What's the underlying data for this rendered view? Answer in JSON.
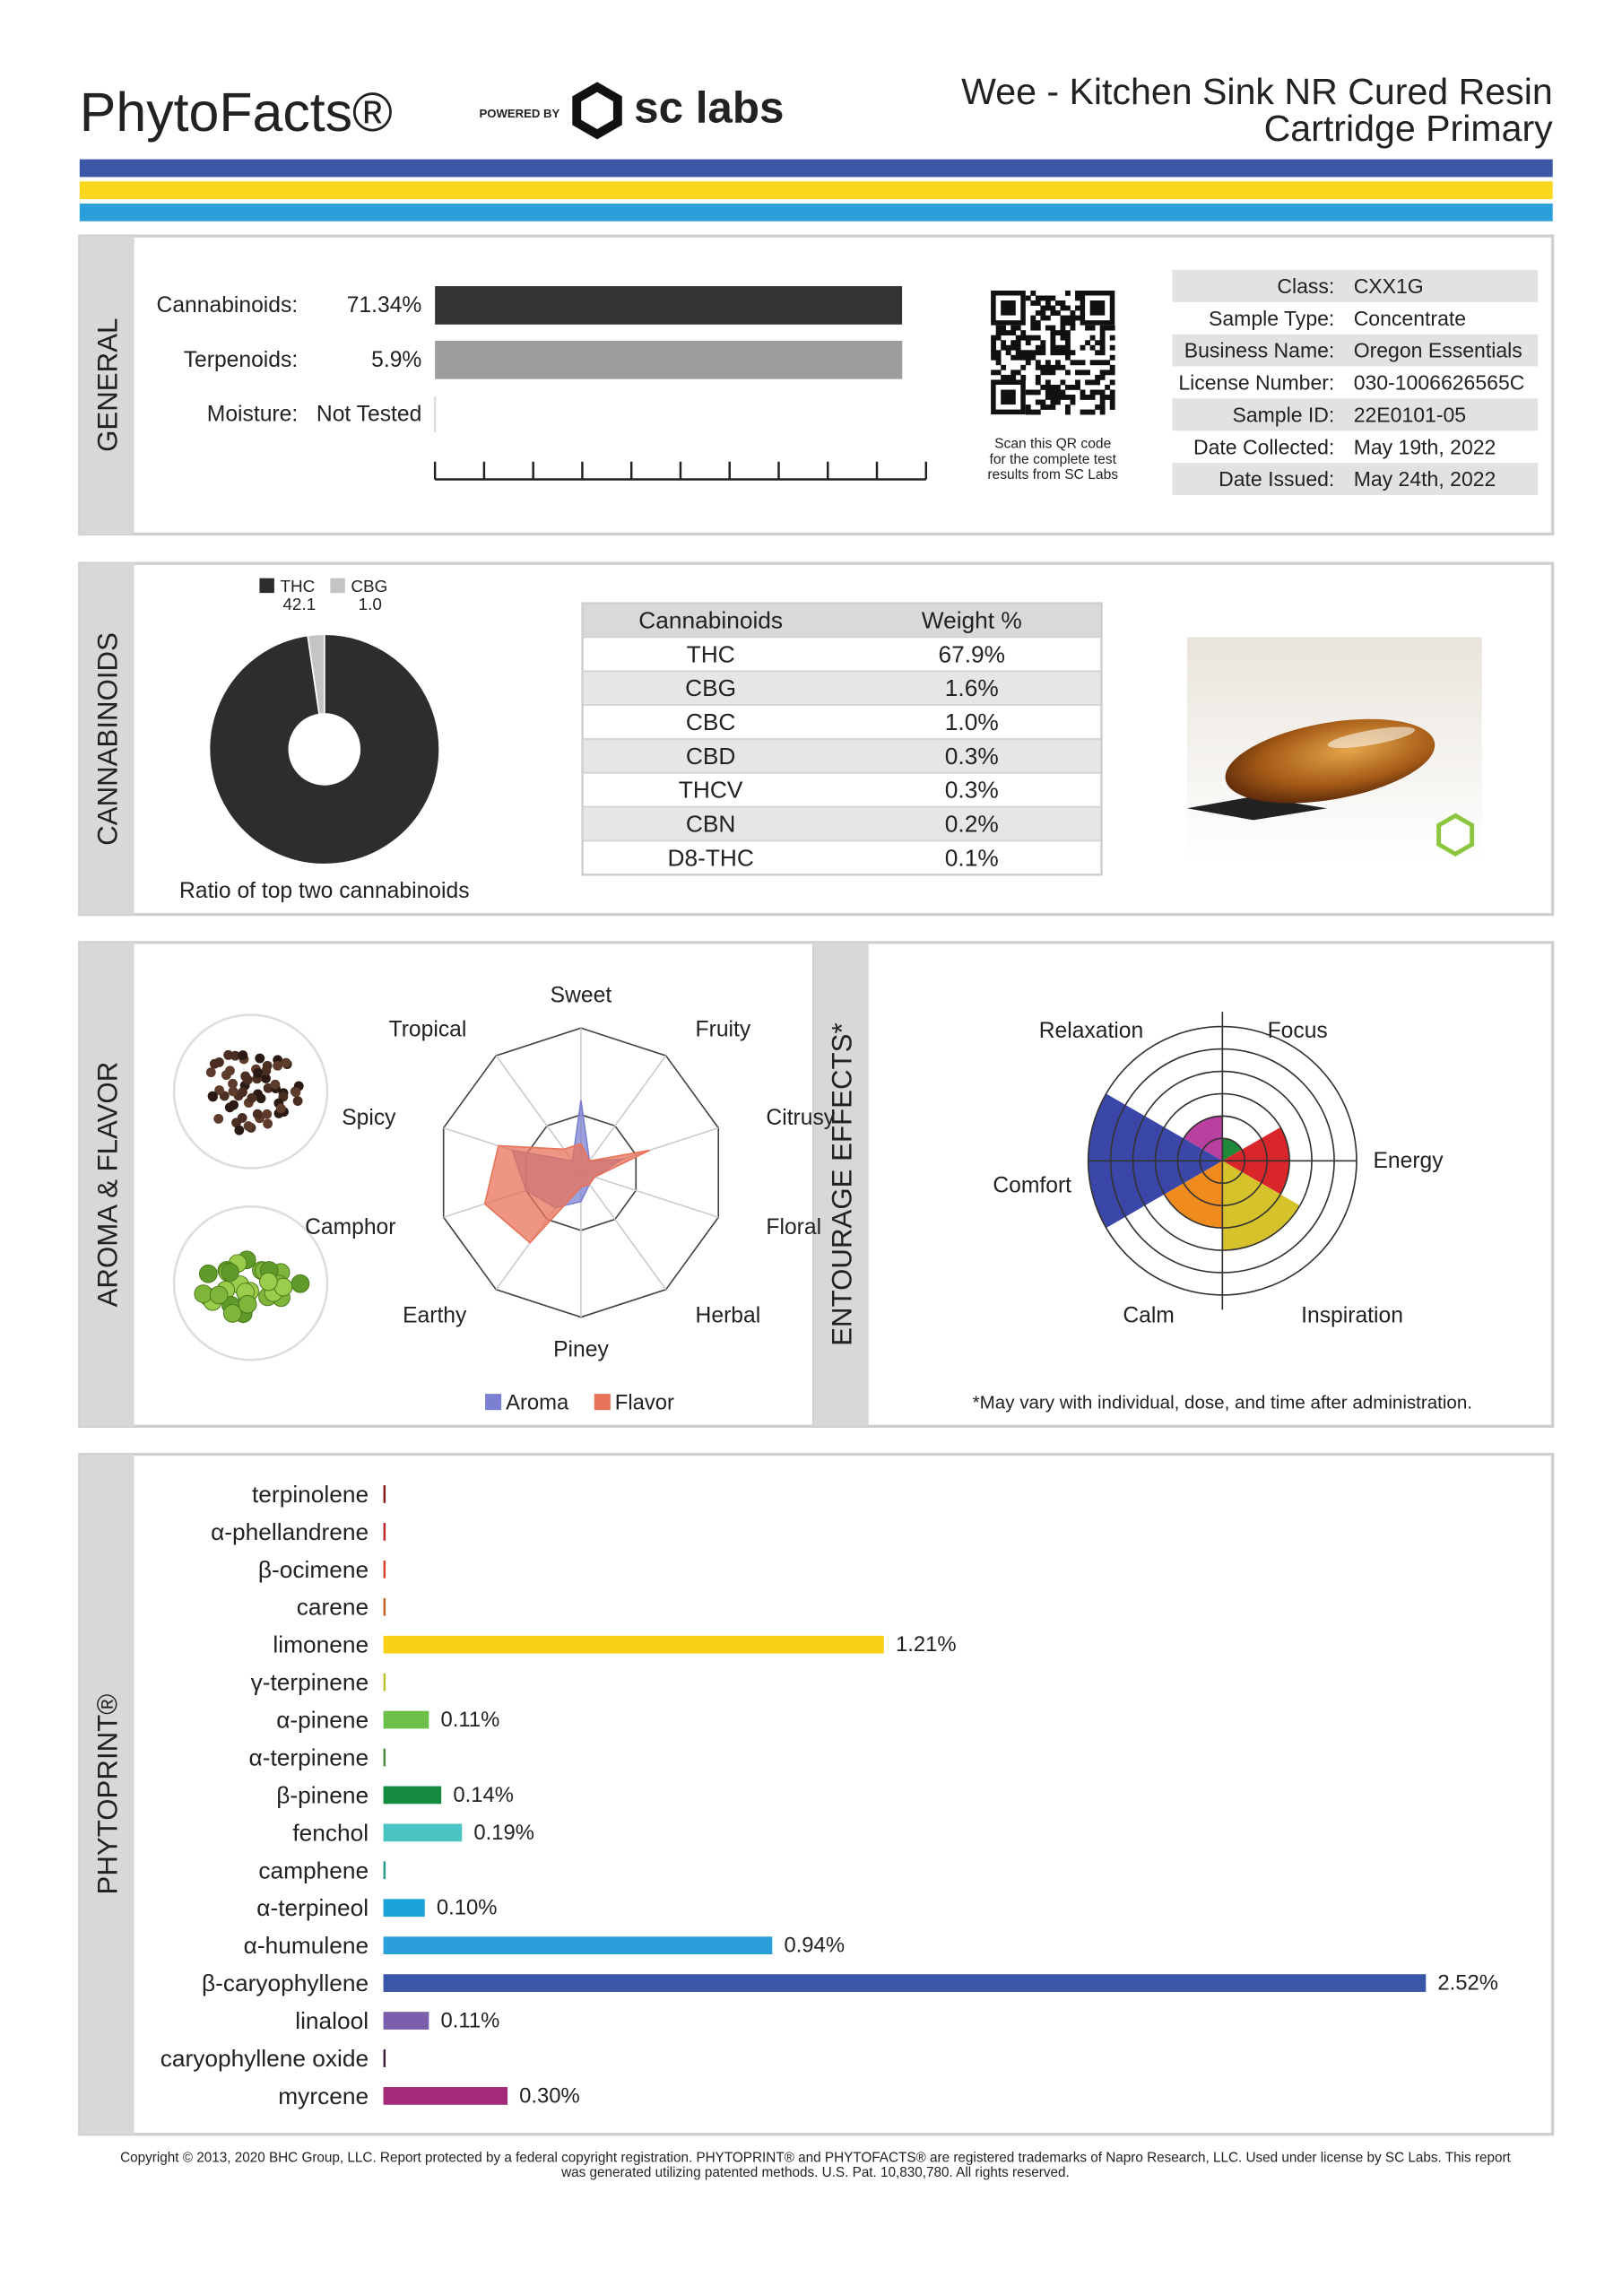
{
  "header": {
    "brand": "PhytoFacts®",
    "powered_by": "POWERED BY",
    "lab": "sc labs",
    "product": [
      "Wee - Kitchen Sink NR Cured Resin",
      "Cartridge Primary"
    ]
  },
  "general": {
    "label": "GENERAL",
    "rows": [
      {
        "name": "Cannabinoids:",
        "value": 71.34,
        "value_label": "71.34%",
        "color": "#333333",
        "xlim": [
          0,
          75
        ]
      },
      {
        "name": "Terpenoids:",
        "value": 5.9,
        "value_label": "5.9%",
        "color": "#9d9d9b",
        "xlim": [
          0,
          6.2
        ]
      },
      {
        "name": "Moisture:",
        "value": null,
        "value_label": "Not Tested"
      }
    ],
    "qr_caption": [
      "Scan this QR code",
      "for the complete test",
      "results from SC Labs"
    ],
    "details": [
      {
        "key": "Class:",
        "value": "CXX1G"
      },
      {
        "key": "Sample Type:",
        "value": "Concentrate"
      },
      {
        "key": "Business Name:",
        "value": "Oregon Essentials"
      },
      {
        "key": "License Number:",
        "value": "030-1006626565C"
      },
      {
        "key": "Sample ID:",
        "value": "22E0101-05"
      },
      {
        "key": "Date Collected:",
        "value": "May 19th, 2022"
      },
      {
        "key": "Date Issued:",
        "value": "May 24th, 2022"
      }
    ]
  },
  "cannabinoids": {
    "label": "CANNABINOIDS",
    "pie": {
      "type": "pie",
      "caption": "Ratio of top two cannabinoids",
      "series": [
        {
          "name": "THC",
          "value": 42.1,
          "value_label": "42.1",
          "color": "#2d2d2d"
        },
        {
          "name": "CBG",
          "value": 1.0,
          "value_label": "1.0",
          "color": "#c4c4c4"
        }
      ]
    },
    "table": {
      "columns": [
        "Cannabinoids",
        "Weight %"
      ],
      "rows": [
        [
          "THC",
          "67.9%"
        ],
        [
          "CBG",
          "1.6%"
        ],
        [
          "CBC",
          "1.0%"
        ],
        [
          "CBD",
          "0.3%"
        ],
        [
          "THCV",
          "0.3%"
        ],
        [
          "CBN",
          "0.2%"
        ],
        [
          "D8-THC",
          "0.1%"
        ]
      ]
    }
  },
  "aroma": {
    "type": "radar",
    "label": "AROMA & FLAVOR",
    "categories": [
      "Sweet",
      "Fruity",
      "Citrusy",
      "Floral",
      "Herbal",
      "Piney",
      "Earthy",
      "Camphor",
      "Spicy",
      "Tropical"
    ],
    "series": [
      {
        "name": "Aroma",
        "color": "#7b80d0",
        "values": [
          5,
          1,
          3,
          1,
          1,
          2,
          3,
          4,
          5,
          1
        ]
      },
      {
        "name": "Flavor",
        "color": "#e8735a",
        "values": [
          2,
          1,
          5,
          1,
          1,
          1,
          6,
          7,
          6,
          2
        ]
      }
    ],
    "rlim": [
      0,
      10
    ],
    "rticks": [
      4,
      10
    ]
  },
  "entourage": {
    "type": "polar",
    "label": "ENTOURAGE EFFECTS*",
    "categories": [
      "Relaxation",
      "Focus",
      "Energy",
      "Inspiration",
      "Calm",
      "Comfort"
    ],
    "values": [
      2,
      1,
      3,
      4,
      3,
      6
    ],
    "colors": [
      "#b9409e",
      "#1e8a3a",
      "#d8262b",
      "#d6c22a",
      "#f08c1e",
      "#3a47a8"
    ],
    "rlim": [
      0,
      6
    ],
    "rticks": [
      1,
      2,
      3,
      4,
      5,
      6
    ],
    "footnote": "*May vary with individual, dose, and time after administration."
  },
  "phytoprint": {
    "type": "bar",
    "label": "PHYTOPRINT®",
    "categories": [
      "terpinolene",
      "α-phellandrene",
      "β-ocimene",
      "carene",
      "limonene",
      "γ-terpinene",
      "α-pinene",
      "α-terpinene",
      "β-pinene",
      "fenchol",
      "camphene",
      "α-terpineol",
      "α-humulene",
      "β-caryophyllene",
      "linalool",
      "caryophyllene oxide",
      "myrcene"
    ],
    "values": [
      0,
      0,
      0,
      0,
      1.21,
      0,
      0.11,
      0,
      0.14,
      0.19,
      0,
      0.1,
      0.94,
      2.52,
      0.11,
      0,
      0.3
    ],
    "value_labels": [
      null,
      null,
      null,
      null,
      "1.21%",
      null,
      "0.11%",
      null,
      "0.14%",
      "0.19%",
      null,
      "0.10%",
      "0.94%",
      "2.52%",
      "0.11%",
      null,
      "0.30%"
    ],
    "colors": [
      "#8b1a1a",
      "#c0282d",
      "#d9402b",
      "#c8622a",
      "#f7d117",
      "#b8c22a",
      "#6cc04a",
      "#4a8a3a",
      "#138a3e",
      "#4ac3c3",
      "#2a9a8a",
      "#1aa3d9",
      "#2a9fd9",
      "#3a56a8",
      "#7b5fad",
      "#3b1a3b",
      "#a3297a"
    ],
    "label_colors": [
      "#8b1a1a",
      "#c0282d",
      "#d9402b",
      "#c8622a",
      "#9a8a1a",
      "#5f8a2a",
      "#3f8a2a",
      "#3f7a3a",
      "#138a3e",
      "#1a8a8a",
      "#1a8a7a",
      "#1a8ab9",
      "#1a7ab9",
      "#3a56a8",
      "#6b4f9d",
      "#3b1a3b",
      "#a3297a"
    ],
    "xlim": [
      0,
      2.7
    ]
  },
  "footer": [
    "Copyright © 2013, 2020 BHC Group, LLC. Report protected by a federal copyright registration. PHYTOPRINT® and PHYTOFACTS® are registered trademarks of Napro Research, LLC. Used under license by SC Labs. This report",
    "was generated utilizing patented methods. U.S. Pat. 10,830,780. All rights reserved."
  ]
}
